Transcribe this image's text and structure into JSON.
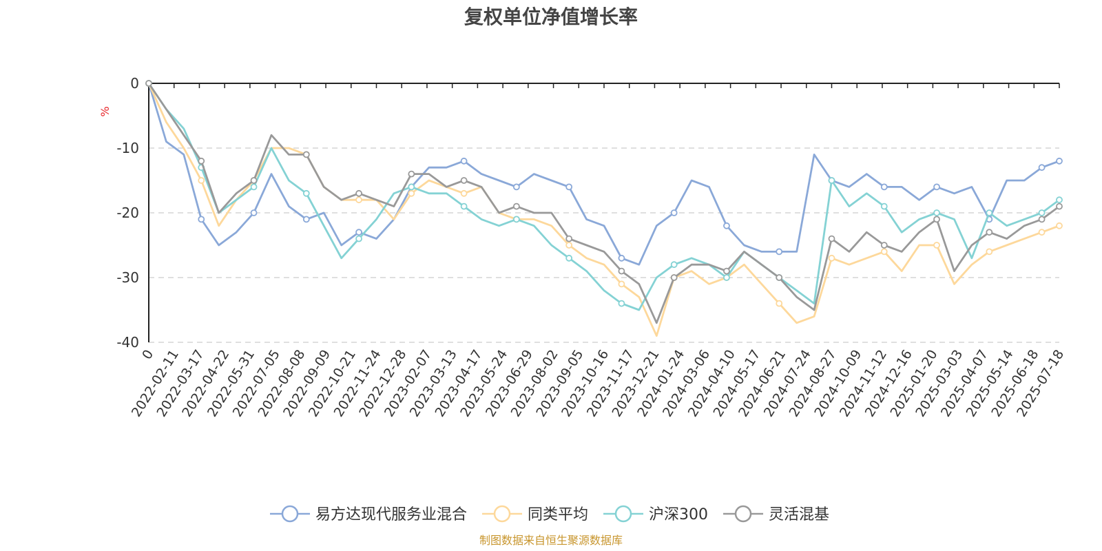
{
  "title": "复权单位净值增长率",
  "source_note": "制图数据来自恒生聚源数据库",
  "chart_data": {
    "type": "line",
    "ylabel": "%",
    "ylim": [
      -40,
      0
    ],
    "yticks": [
      0,
      -10,
      -20,
      -30,
      -40
    ],
    "x_tick_labels": [
      "0",
      "2022-02-11",
      "2022-03-17",
      "2022-04-22",
      "2022-05-31",
      "2022-07-05",
      "2022-08-08",
      "2022-09-09",
      "2022-10-21",
      "2022-11-24",
      "2022-12-28",
      "2023-02-07",
      "2023-03-13",
      "2023-04-17",
      "2023-05-24",
      "2023-06-29",
      "2023-08-02",
      "2023-09-05",
      "2023-10-16",
      "2023-11-17",
      "2023-12-21",
      "2024-01-24",
      "2024-03-06",
      "2024-04-10",
      "2024-05-17",
      "2024-06-21",
      "2024-07-24",
      "2024-08-27",
      "2024-10-09",
      "2024-11-12",
      "2024-12-16",
      "2025-01-20",
      "2025-03-03",
      "2025-04-07",
      "2025-05-14",
      "2025-06-18",
      "2025-07-18"
    ],
    "grid": true,
    "legend_position": "bottom-center",
    "series": [
      {
        "name": "易方达现代服务业混合",
        "color": "#8aa8d8",
        "values": [
          0,
          -9,
          -11,
          -21,
          -25,
          -23,
          -20,
          -14,
          -19,
          -21,
          -20,
          -25,
          -23,
          -24,
          -21,
          -16,
          -13,
          -13,
          -12,
          -14,
          -15,
          -16,
          -14,
          -15,
          -16,
          -21,
          -22,
          -27,
          -28,
          -22,
          -20,
          -15,
          -16,
          -22,
          -25,
          -26,
          -26,
          -26,
          -11,
          -15,
          -16,
          -14,
          -16,
          -16,
          -18,
          -16,
          -17,
          -16,
          -21,
          -15,
          -15,
          -13,
          -12
        ]
      },
      {
        "name": "同类平均",
        "color": "#fdd89b",
        "values": [
          0,
          -6,
          -10,
          -15,
          -22,
          -18,
          -15,
          -10,
          -10,
          -11,
          -16,
          -18,
          -18,
          -18,
          -21,
          -17,
          -15,
          -16,
          -17,
          -16,
          -20,
          -21,
          -21,
          -22,
          -25,
          -27,
          -28,
          -31,
          -33,
          -39,
          -30,
          -29,
          -31,
          -30,
          -28,
          -31,
          -34,
          -37,
          -36,
          -27,
          -28,
          -27,
          -26,
          -29,
          -25,
          -25,
          -31,
          -28,
          -26,
          -25,
          -24,
          -23,
          -22
        ]
      },
      {
        "name": "沪深300",
        "color": "#84d2d4",
        "values": [
          0,
          -4,
          -7,
          -13,
          -20,
          -18,
          -16,
          -10,
          -15,
          -17,
          -22,
          -27,
          -24,
          -21,
          -17,
          -16,
          -17,
          -17,
          -19,
          -21,
          -22,
          -21,
          -22,
          -25,
          -27,
          -29,
          -32,
          -34,
          -35,
          -30,
          -28,
          -27,
          -28,
          -30,
          -26,
          -28,
          -30,
          -32,
          -34,
          -15,
          -19,
          -17,
          -19,
          -23,
          -21,
          -20,
          -21,
          -27,
          -20,
          -22,
          -21,
          -20,
          -18
        ]
      },
      {
        "name": "灵活混基",
        "color": "#999999",
        "values": [
          0,
          -4,
          -8,
          -12,
          -20,
          -17,
          -15,
          -8,
          -11,
          -11,
          -16,
          -18,
          -17,
          -18,
          -19,
          -14,
          -14,
          -16,
          -15,
          -16,
          -20,
          -19,
          -20,
          -20,
          -24,
          -25,
          -26,
          -29,
          -31,
          -37,
          -30,
          -28,
          -28,
          -29,
          -26,
          -28,
          -30,
          -33,
          -35,
          -24,
          -26,
          -23,
          -25,
          -26,
          -23,
          -21,
          -29,
          -25,
          -23,
          -24,
          -22,
          -21,
          -19
        ]
      }
    ]
  }
}
